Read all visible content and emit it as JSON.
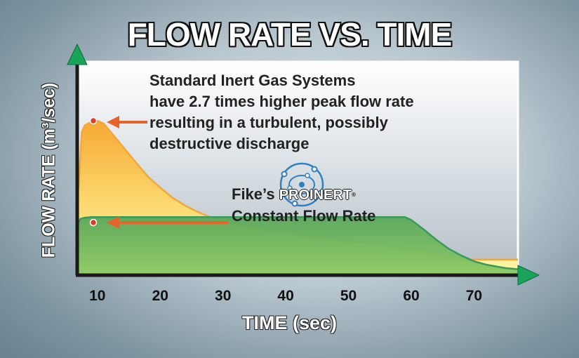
{
  "chart_data": {
    "type": "area",
    "title": "FLOW RATE VS. TIME",
    "xlabel": "TIME (sec)",
    "ylabel": "FLOW RATE (m³/sec)",
    "x_ticks": [
      10,
      20,
      30,
      40,
      50,
      60,
      70
    ],
    "xlim": [
      7,
      77
    ],
    "y_axis_numeric": false,
    "series": [
      {
        "name": "Standard Inert Gas Systems",
        "color": "#f4a73a",
        "fill_top": "#f6b23c",
        "fill_bottom": "#fff7a0",
        "points": [
          [
            7,
            1.5
          ],
          [
            7.5,
            2.5
          ],
          [
            8,
            2.62
          ],
          [
            9,
            2.68
          ],
          [
            10,
            2.7
          ],
          [
            11,
            2.65
          ],
          [
            12,
            2.52
          ],
          [
            14,
            2.25
          ],
          [
            16,
            1.98
          ],
          [
            18,
            1.72
          ],
          [
            20,
            1.52
          ],
          [
            22,
            1.34
          ],
          [
            24,
            1.2
          ],
          [
            26,
            1.09
          ],
          [
            28,
            1.0
          ],
          [
            30,
            0.94
          ],
          [
            32,
            0.89
          ],
          [
            36,
            0.8
          ],
          [
            40,
            0.72
          ],
          [
            44,
            0.66
          ],
          [
            48,
            0.6
          ],
          [
            52,
            0.55
          ],
          [
            56,
            0.49
          ],
          [
            60,
            0.43
          ],
          [
            62,
            0.4
          ],
          [
            64,
            0.33
          ],
          [
            66,
            0.27
          ],
          [
            68,
            0.25
          ],
          [
            72,
            0.25
          ],
          [
            77,
            0.25
          ]
        ]
      },
      {
        "name": "Fike's PROINERT Constant Flow Rate",
        "color": "#3a9a5c",
        "fill": "#79c060",
        "points": [
          [
            7,
            0.9
          ],
          [
            7.3,
            0.97
          ],
          [
            8,
            0.99
          ],
          [
            9,
            1.0
          ],
          [
            59,
            1.0
          ],
          [
            60,
            0.95
          ],
          [
            62,
            0.78
          ],
          [
            64,
            0.6
          ],
          [
            66,
            0.44
          ],
          [
            68,
            0.32
          ],
          [
            70,
            0.22
          ],
          [
            72,
            0.16
          ],
          [
            75,
            0.1
          ],
          [
            77,
            0.08
          ]
        ]
      }
    ],
    "annotations": [
      {
        "text": "Standard Inert Gas Systems have 2.7 times higher peak flow rate resulting in a turbulent, possibly destructive discharge",
        "points_to": "peak at x=10"
      },
      {
        "text": "Fike's PROINERT Constant Flow Rate",
        "points_to": "constant flow level at x=10"
      }
    ],
    "peak_ratio": 2.7
  },
  "annotation1": {
    "line1": "Standard Inert Gas Systems",
    "line2": "have 2.7 times higher peak flow rate",
    "line3": "resulting in a turbulent, possibly",
    "line4": "destructive discharge"
  },
  "annotation2": {
    "prefix": "Fike’s",
    "brand": "PROINERT",
    "registered": "®",
    "line2": "Constant Flow Rate"
  },
  "colors": {
    "plot_bg_top": "#ffffff",
    "plot_bg_bottom": "#b8c3ca",
    "axis": "#1a1a1a",
    "axis_arrow": "#1aa35a",
    "pointer_arrow": "#e8622a",
    "marker": "#e23a2a",
    "logo": "#2f7fc4"
  },
  "icons": [
    "proinert-logo-icon",
    "axis-arrow-icon",
    "pointer-arrow-icon"
  ]
}
